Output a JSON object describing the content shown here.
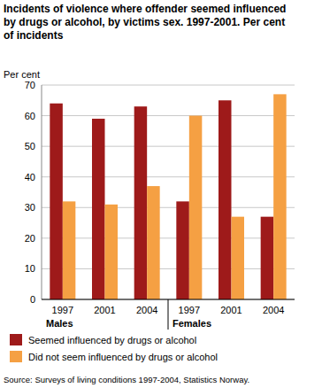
{
  "chart_data": {
    "type": "bar",
    "title": [
      "Incidents of violence where offender seemed influenced",
      "by drugs or alcohol, by victims sex. 1997-2001. Per cent",
      "of incidents"
    ],
    "y_label": "Per cent",
    "categories": [
      "1997",
      "2001",
      "2004",
      "1997",
      "2001",
      "2004"
    ],
    "category_groups": [
      "Males",
      "Females"
    ],
    "series": [
      {
        "name": "Seemed influenced by drugs or alcohol",
        "color": "#9e1a1a",
        "values": [
          64,
          59,
          63,
          32,
          65,
          27
        ]
      },
      {
        "name": "Did not seem influenced by drugs or alcohol",
        "color": "#f5a043",
        "values": [
          32,
          31,
          37,
          60,
          27,
          67
        ]
      }
    ],
    "ylim": [
      0,
      70
    ],
    "yticks": [
      0,
      10,
      20,
      30,
      40,
      50,
      60,
      70
    ],
    "grid": true,
    "legend": "bottom",
    "source": "Source: Surveys of living conditions 1997-2004, Statistics Norway."
  }
}
